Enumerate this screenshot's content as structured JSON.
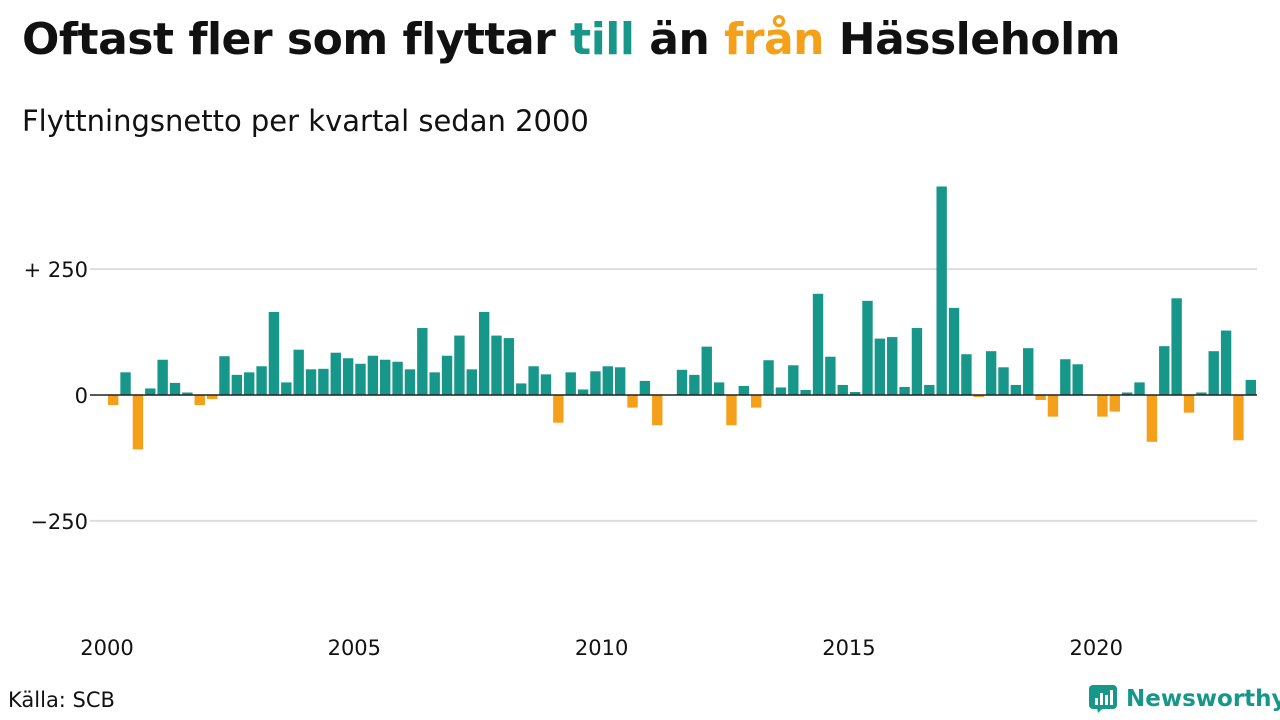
{
  "header": {
    "title_part1": "Oftast fler som flyttar ",
    "title_till": "till",
    "title_part2": " än ",
    "title_fran": "från",
    "title_part3": " Hässleholm",
    "subtitle": "Flyttningsnetto per kvartal sedan 2000"
  },
  "footer": {
    "source": "Källa: SCB",
    "brand": "Newsworthy",
    "brand_icon": "newsworthy-logo-icon"
  },
  "colors": {
    "positive": "#17968a",
    "negative": "#f5a01a",
    "grid": "#dddddd",
    "zero_line": "#222222",
    "text": "#111111"
  },
  "chart_data": {
    "type": "bar",
    "title": "Oftast fler som flyttar till än från Hässleholm",
    "subtitle": "Flyttningsnetto per kvartal sedan 2000",
    "xlabel": "",
    "ylabel": "",
    "x_start": "2000 Q1",
    "x_ticks": [
      "2000",
      "2005",
      "2010",
      "2015",
      "2020"
    ],
    "y_ticks": [
      {
        "value": 250,
        "label": "+ 250"
      },
      {
        "value": 0,
        "label": "0"
      },
      {
        "value": -250,
        "label": "−250"
      }
    ],
    "ylim": [
      -420,
      420
    ],
    "grid": true,
    "legend": "none",
    "categories": [
      "2000 Q1",
      "2000 Q2",
      "2000 Q3",
      "2000 Q4",
      "2001 Q1",
      "2001 Q2",
      "2001 Q3",
      "2001 Q4",
      "2002 Q1",
      "2002 Q2",
      "2002 Q3",
      "2002 Q4",
      "2003 Q1",
      "2003 Q2",
      "2003 Q3",
      "2003 Q4",
      "2004 Q1",
      "2004 Q2",
      "2004 Q3",
      "2004 Q4",
      "2005 Q1",
      "2005 Q2",
      "2005 Q3",
      "2005 Q4",
      "2006 Q1",
      "2006 Q2",
      "2006 Q3",
      "2006 Q4",
      "2007 Q1",
      "2007 Q2",
      "2007 Q3",
      "2007 Q4",
      "2008 Q1",
      "2008 Q2",
      "2008 Q3",
      "2008 Q4",
      "2009 Q1",
      "2009 Q2",
      "2009 Q3",
      "2009 Q4",
      "2010 Q1",
      "2010 Q2",
      "2010 Q3",
      "2010 Q4",
      "2011 Q1",
      "2011 Q2",
      "2011 Q3",
      "2011 Q4",
      "2012 Q1",
      "2012 Q2",
      "2012 Q3",
      "2012 Q4",
      "2013 Q1",
      "2013 Q2",
      "2013 Q3",
      "2013 Q4",
      "2014 Q1",
      "2014 Q2",
      "2014 Q3",
      "2014 Q4",
      "2015 Q1",
      "2015 Q2",
      "2015 Q3",
      "2015 Q4",
      "2016 Q1",
      "2016 Q2",
      "2016 Q3",
      "2016 Q4",
      "2017 Q1",
      "2017 Q2",
      "2017 Q3",
      "2017 Q4",
      "2018 Q1",
      "2018 Q2",
      "2018 Q3",
      "2018 Q4",
      "2019 Q1",
      "2019 Q2",
      "2019 Q3",
      "2019 Q4",
      "2020 Q1",
      "2020 Q2",
      "2020 Q3",
      "2020 Q4",
      "2021 Q1",
      "2021 Q2",
      "2021 Q3",
      "2021 Q4",
      "2022 Q1",
      "2022 Q2",
      "2022 Q3",
      "2022 Q4",
      "2023 Q1"
    ],
    "values": [
      -20,
      45,
      -108,
      13,
      70,
      24,
      5,
      -20,
      -8,
      77,
      40,
      45,
      57,
      165,
      25,
      90,
      51,
      52,
      84,
      73,
      62,
      78,
      70,
      66,
      51,
      133,
      45,
      78,
      118,
      51,
      165,
      118,
      113,
      23,
      57,
      41,
      -55,
      45,
      11,
      47,
      57,
      55,
      -25,
      28,
      -60,
      0,
      50,
      40,
      96,
      25,
      -60,
      18,
      -25,
      69,
      15,
      59,
      10,
      201,
      76,
      20,
      6,
      187,
      112,
      115,
      16,
      133,
      20,
      414,
      173,
      81,
      -4,
      87,
      55,
      20,
      93,
      -10,
      -43,
      71,
      61,
      0,
      -43,
      -33,
      5,
      25,
      -93,
      97,
      192,
      -35,
      5,
      87,
      128,
      -90,
      30
    ]
  }
}
